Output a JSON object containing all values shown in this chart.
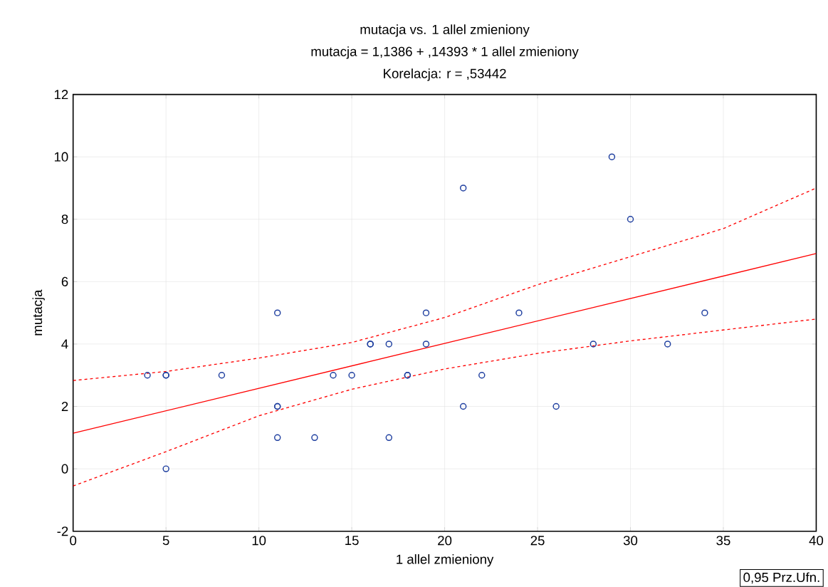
{
  "chart_data": {
    "type": "scatter",
    "title": "mutacja  vs. 1 allel zmieniony",
    "subtitle": "mutacja  = 1,1386 + ,14393 * 1 allel zmieniony",
    "annotations": [
      "Korelacja: r =   ,53442",
      "0,95 Prz.Ufn."
    ],
    "xlabel": "1 allel zmieniony",
    "ylabel": "mutacja",
    "series": [
      {
        "color": "#2040a0",
        "marker": "circle",
        "x": [
          4,
          5,
          5,
          5,
          8,
          11,
          11,
          11,
          11,
          13,
          14,
          15,
          16,
          16,
          17,
          17,
          18,
          18,
          19,
          19,
          21,
          21,
          22,
          24,
          26,
          28,
          29,
          30,
          32,
          34
        ],
        "values": [
          3,
          3,
          3,
          0,
          3,
          5,
          2,
          2,
          1,
          1,
          3,
          3,
          4,
          4,
          4,
          1,
          3,
          3,
          5,
          4,
          9,
          2,
          3,
          5,
          2,
          4,
          10,
          8,
          4,
          5
        ]
      },
      {
        "type": "line",
        "color": "#ff0000",
        "line_style": "solid",
        "x": [
          0,
          40
        ],
        "values": [
          1.14,
          6.9
        ]
      },
      {
        "type": "line",
        "color": "#ff0000",
        "line_style": "dashed",
        "x": [
          0,
          5,
          10,
          15,
          20,
          25,
          30,
          35,
          40
        ],
        "values": [
          2.83,
          3.12,
          3.55,
          4.05,
          4.85,
          5.9,
          6.8,
          7.7,
          9.0
        ]
      },
      {
        "type": "line",
        "color": "#ff0000",
        "line_style": "dashed",
        "x": [
          0,
          5,
          10,
          15,
          20,
          25,
          30,
          35,
          40
        ],
        "values": [
          -0.55,
          0.55,
          1.7,
          2.55,
          3.2,
          3.7,
          4.1,
          4.45,
          4.8
        ]
      }
    ],
    "xlim": [
      0,
      40
    ],
    "ylim": [
      -2,
      12
    ],
    "xticks": [
      0,
      5,
      10,
      15,
      20,
      25,
      30,
      35,
      40
    ],
    "yticks": [
      -2,
      0,
      2,
      4,
      6,
      8,
      10,
      12
    ],
    "grid": true
  }
}
